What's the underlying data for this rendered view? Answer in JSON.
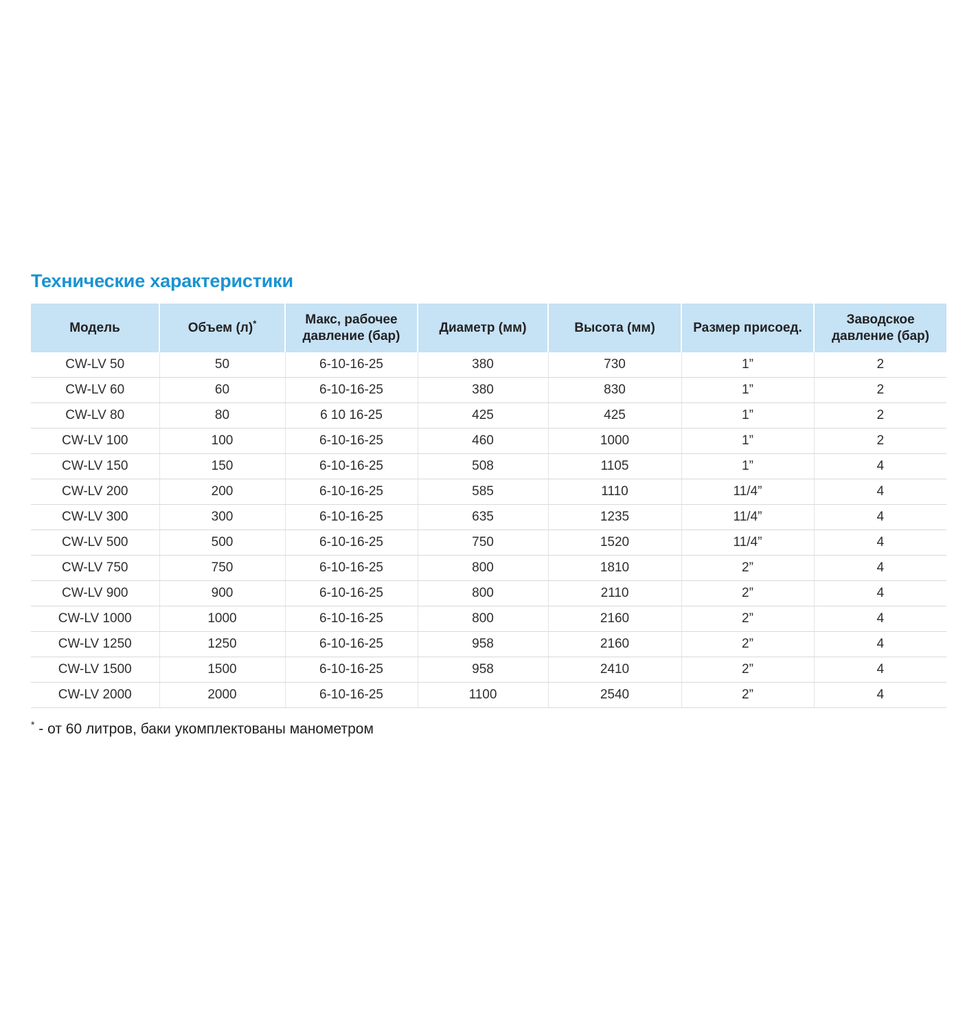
{
  "page": {
    "title": "Технические характеристики",
    "footnote_marker": "*",
    "footnote_text": " - от 60 литров, баки укомплектованы манометром"
  },
  "colors": {
    "title_blue": "#1b93d2",
    "header_background": "#c6e2f5",
    "row_border": "#d9d9d9",
    "text": "#2e2e2e"
  },
  "table": {
    "columns": [
      {
        "label": "Модель"
      },
      {
        "label": "Объем (л)",
        "sup": "*"
      },
      {
        "label": "Макс, рабочее давление (бар)"
      },
      {
        "label": "Диаметр (мм)"
      },
      {
        "label": "Высота (мм)"
      },
      {
        "label": "Размер присоед."
      },
      {
        "label": "Заводское давление (бар)"
      }
    ],
    "rows": [
      [
        "CW-LV 50",
        "50",
        "6-10-16-25",
        "380",
        "730",
        "1”",
        "2"
      ],
      [
        "CW-LV 60",
        "60",
        "6-10-16-25",
        "380",
        "830",
        "1”",
        "2"
      ],
      [
        "CW-LV 80",
        "80",
        "6 10 16-25",
        "425",
        "425",
        "1”",
        "2"
      ],
      [
        "CW-LV 100",
        "100",
        "6-10-16-25",
        "460",
        "1000",
        "1”",
        "2"
      ],
      [
        "CW-LV 150",
        "150",
        "6-10-16-25",
        "508",
        "1105",
        "1”",
        "4"
      ],
      [
        "CW-LV 200",
        "200",
        "6-10-16-25",
        "585",
        "1110",
        "11/4”",
        "4"
      ],
      [
        "CW-LV 300",
        "300",
        "6-10-16-25",
        "635",
        "1235",
        "11/4”",
        "4"
      ],
      [
        "CW-LV 500",
        "500",
        "6-10-16-25",
        "750",
        "1520",
        "11/4”",
        "4"
      ],
      [
        "CW-LV 750",
        "750",
        "6-10-16-25",
        "800",
        "1810",
        "2”",
        "4"
      ],
      [
        "CW-LV 900",
        "900",
        "6-10-16-25",
        "800",
        "2110",
        "2”",
        "4"
      ],
      [
        "CW-LV 1000",
        "1000",
        "6-10-16-25",
        "800",
        "2160",
        "2”",
        "4"
      ],
      [
        "CW-LV 1250",
        "1250",
        "6-10-16-25",
        "958",
        "2160",
        "2”",
        "4"
      ],
      [
        "CW-LV 1500",
        "1500",
        "6-10-16-25",
        "958",
        "2410",
        "2”",
        "4"
      ],
      [
        "CW-LV 2000",
        "2000",
        "6-10-16-25",
        "1100",
        "2540",
        "2”",
        "4"
      ]
    ]
  }
}
